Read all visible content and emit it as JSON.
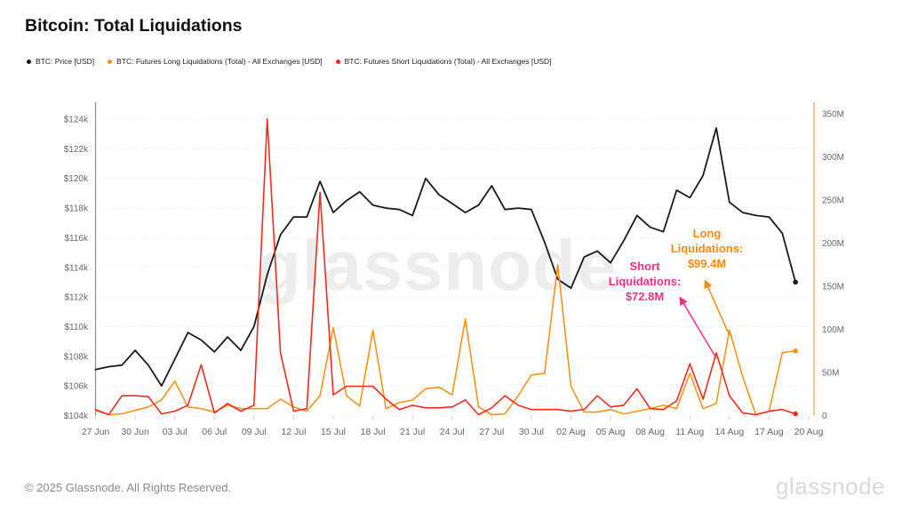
{
  "header": {
    "title": "Bitcoin: Total Liquidations"
  },
  "legend": {
    "items": [
      {
        "label": "BTC: Price [USD]",
        "color": "#1a1a1a"
      },
      {
        "label": "BTC: Futures Long Liquidations (Total) - All Exchanges [USD]",
        "color": "#f7931a"
      },
      {
        "label": "BTC: Futures Short Liquidations (Total) - All Exchanges [USD]",
        "color": "#ef2b1e"
      }
    ]
  },
  "chart_data": {
    "type": "line",
    "title": "Bitcoin: Total Liquidations",
    "x": [
      "27 Jun",
      "28 Jun",
      "29 Jun",
      "30 Jun",
      "01 Jul",
      "02 Jul",
      "03 Jul",
      "04 Jul",
      "05 Jul",
      "06 Jul",
      "07 Jul",
      "08 Jul",
      "09 Jul",
      "10 Jul",
      "11 Jul",
      "12 Jul",
      "13 Jul",
      "14 Jul",
      "15 Jul",
      "16 Jul",
      "17 Jul",
      "18 Jul",
      "19 Jul",
      "20 Jul",
      "21 Jul",
      "22 Jul",
      "23 Jul",
      "24 Jul",
      "25 Jul",
      "26 Jul",
      "27 Jul",
      "28 Jul",
      "29 Jul",
      "30 Jul",
      "31 Jul",
      "01 Aug",
      "02 Aug",
      "03 Aug",
      "04 Aug",
      "05 Aug",
      "06 Aug",
      "07 Aug",
      "08 Aug",
      "09 Aug",
      "10 Aug",
      "11 Aug",
      "12 Aug",
      "13 Aug",
      "14 Aug",
      "15 Aug",
      "16 Aug",
      "17 Aug",
      "18 Aug",
      "19 Aug"
    ],
    "x_tick_labels": [
      "27 Jun",
      "30 Jun",
      "03 Jul",
      "06 Jul",
      "09 Jul",
      "12 Jul",
      "15 Jul",
      "18 Jul",
      "21 Jul",
      "24 Jul",
      "27 Jul",
      "30 Jul",
      "02 Aug",
      "05 Aug",
      "08 Aug",
      "11 Aug",
      "14 Aug",
      "17 Aug",
      "20 Aug"
    ],
    "series": [
      {
        "name": "BTC: Price [USD]",
        "axis": "left",
        "unit": "USD (thousands)",
        "color": "#1a1a1a",
        "values": [
          107.1,
          107.3,
          107.4,
          108.4,
          107.4,
          106.0,
          107.8,
          109.6,
          109.1,
          108.3,
          109.3,
          108.4,
          110.0,
          113.5,
          116.2,
          117.4,
          117.4,
          119.8,
          117.7,
          118.5,
          119.1,
          118.2,
          118.0,
          117.9,
          117.5,
          120.0,
          118.9,
          118.3,
          117.7,
          118.2,
          119.5,
          117.9,
          118.0,
          117.9,
          115.7,
          113.2,
          112.6,
          114.7,
          115.1,
          114.3,
          115.8,
          117.5,
          116.7,
          116.4,
          119.2,
          118.7,
          120.2,
          123.4,
          118.4,
          117.7,
          117.5,
          117.4,
          116.3,
          113.0
        ]
      },
      {
        "name": "BTC: Futures Long Liquidations (Total) - All Exchanges [USD]",
        "axis": "right",
        "unit": "USD (millions)",
        "color": "#f7931a",
        "values": [
          6,
          1,
          2,
          6,
          10,
          18,
          40,
          10,
          8,
          4,
          12,
          8,
          8,
          8,
          19,
          10,
          5,
          23,
          102,
          23,
          11,
          99,
          8,
          15,
          18,
          31,
          33,
          24,
          112,
          10,
          1,
          2,
          23,
          47,
          49,
          175,
          34,
          4,
          4,
          7,
          2,
          5,
          8,
          12,
          8,
          49,
          8,
          14,
          99.4,
          45,
          1,
          5,
          73,
          75
        ]
      },
      {
        "name": "BTC: Futures Short Liquidations (Total) - All Exchanges [USD]",
        "axis": "right",
        "unit": "USD (millions)",
        "color": "#ef2b1e",
        "values": [
          7,
          1,
          23,
          23,
          22,
          2,
          5,
          12,
          59,
          3,
          14,
          5,
          12,
          344,
          73,
          5,
          8,
          259,
          24,
          34,
          34,
          34,
          19,
          7,
          12,
          9,
          9,
          10,
          18,
          1,
          9,
          23,
          12,
          7,
          7,
          7,
          5,
          7,
          23,
          10,
          12,
          31,
          8,
          7,
          17,
          60,
          19,
          72.8,
          23,
          3,
          1,
          5,
          7,
          2
        ]
      }
    ],
    "left_axis": {
      "ticks": [
        "$124k",
        "$122k",
        "$120k",
        "$118k",
        "$116k",
        "$114k",
        "$112k",
        "$110k",
        "$108k",
        "$106k",
        "$104k"
      ],
      "tick_values": [
        124,
        122,
        120,
        118,
        116,
        114,
        112,
        110,
        108,
        106,
        104
      ],
      "min": 104,
      "max": 124,
      "unit": "USD (thousands)"
    },
    "right_axis": {
      "ticks": [
        "350M",
        "300M",
        "250M",
        "200M",
        "150M",
        "100M",
        "50M",
        "0"
      ],
      "tick_values": [
        350,
        300,
        250,
        200,
        150,
        100,
        50,
        0
      ],
      "min": 0,
      "max": 350,
      "unit": "USD (millions)"
    },
    "annotations": [
      {
        "text": "Short\nLiquidations:\n$72.8M",
        "value": "72.8M",
        "color": "#f5317f",
        "target": {
          "date": "13 Aug",
          "series": "short"
        }
      },
      {
        "text": "Long\nLiquidations:\n$99.4M",
        "value": "99.4M",
        "color": "#f78a10",
        "target": {
          "date": "14 Aug",
          "series": "long"
        }
      }
    ],
    "watermark": "glassnode",
    "grid": "horizontal-dotted",
    "legend_position": "top-left"
  },
  "footer": {
    "copyright": "© 2025 Glassnode. All Rights Reserved.",
    "logo": "glassnode"
  }
}
